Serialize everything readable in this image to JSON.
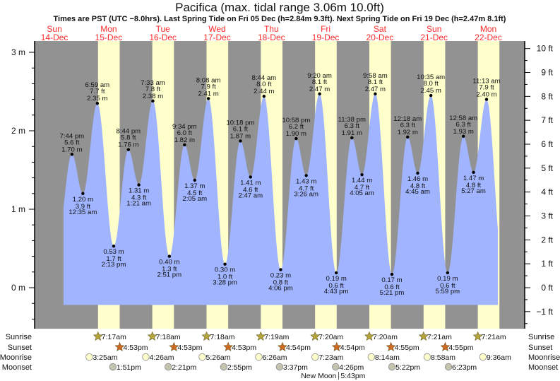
{
  "title": "Pacifica (max. tidal range 3.06m 10.0ft)",
  "subtitle": "Times are PST (UTC −8.0hrs). Last Spring Tide on Fri 05 Dec (h=2.84m 9.3ft). Next Spring Tide on Fri 19 Dec (h=2.47m 8.1ft)",
  "colors": {
    "night": "#929292",
    "daylight": "#ffffcc",
    "water": "#a0b4ff",
    "day_label": "#ff2a2a",
    "sunrise_star": "#b3a53a",
    "sunset_star": "#d06a22",
    "moonrise": "#ffffcc",
    "moonset": "#c4c4ae"
  },
  "chart_data": {
    "type": "area",
    "title": "Pacifica (max. tidal range 3.06m 10.0ft)",
    "days": [
      {
        "dow": "Sun",
        "date": "14-Dec"
      },
      {
        "dow": "Mon",
        "date": "15-Dec"
      },
      {
        "dow": "Tue",
        "date": "16-Dec"
      },
      {
        "dow": "Wed",
        "date": "17-Dec"
      },
      {
        "dow": "Thu",
        "date": "18-Dec"
      },
      {
        "dow": "Fri",
        "date": "19-Dec"
      },
      {
        "dow": "Sat",
        "date": "20-Dec"
      },
      {
        "dow": "Sun",
        "date": "21-Dec"
      },
      {
        "dow": "Mon",
        "date": "22-Dec"
      }
    ],
    "y_left": {
      "unit": "m",
      "ylim": [
        -0.48,
        3.15
      ],
      "ticks": [
        {
          "v": 3,
          "label": "3 m"
        },
        {
          "v": 2,
          "label": "2 m"
        },
        {
          "v": 1,
          "label": "1 m"
        },
        {
          "v": 0,
          "label": "0 m"
        }
      ]
    },
    "y_right": {
      "unit": "ft",
      "ticks": [
        {
          "v": 10,
          "label": "10 ft"
        },
        {
          "v": 9,
          "label": "9 ft"
        },
        {
          "v": 8,
          "label": "8 ft"
        },
        {
          "v": 7,
          "label": "7 ft"
        },
        {
          "v": 6,
          "label": "6 ft"
        },
        {
          "v": 5,
          "label": "5 ft"
        },
        {
          "v": 4,
          "label": "4 ft"
        },
        {
          "v": 3,
          "label": "3 ft"
        },
        {
          "v": 2,
          "label": "2 ft"
        },
        {
          "v": 1,
          "label": "1 ft"
        },
        {
          "v": 0,
          "label": "0 ft"
        },
        {
          "v": -1,
          "label": "−1 ft"
        }
      ]
    },
    "extremes": [
      {
        "date": "14-Dec",
        "type": "high",
        "time": "7:44 pm",
        "m": "1.70 m",
        "ft": "5.6 ft",
        "h": 1.7
      },
      {
        "date": "15-Dec",
        "type": "low",
        "time": "12:35 am",
        "m": "1.20 m",
        "ft": "3.9 ft",
        "h": 1.2
      },
      {
        "date": "15-Dec",
        "type": "high",
        "time": "6:59 am",
        "m": "2.35 m",
        "ft": "7.7 ft",
        "h": 2.35
      },
      {
        "date": "15-Dec",
        "type": "low",
        "time": "2:13 pm",
        "m": "0.53 m",
        "ft": "1.7 ft",
        "h": 0.53
      },
      {
        "date": "15-Dec",
        "type": "high",
        "time": "8:44 pm",
        "m": "1.76 m",
        "ft": "5.8 ft",
        "h": 1.76
      },
      {
        "date": "16-Dec",
        "type": "low",
        "time": "1:21 am",
        "m": "1.31 m",
        "ft": "4.3 ft",
        "h": 1.31
      },
      {
        "date": "16-Dec",
        "type": "high",
        "time": "7:33 am",
        "m": "2.38 m",
        "ft": "7.8 ft",
        "h": 2.38
      },
      {
        "date": "16-Dec",
        "type": "low",
        "time": "2:51 pm",
        "m": "0.40 m",
        "ft": "1.3 ft",
        "h": 0.4
      },
      {
        "date": "16-Dec",
        "type": "high",
        "time": "9:34 pm",
        "m": "1.82 m",
        "ft": "6.0 ft",
        "h": 1.82
      },
      {
        "date": "17-Dec",
        "type": "low",
        "time": "2:05 am",
        "m": "1.37 m",
        "ft": "4.5 ft",
        "h": 1.37
      },
      {
        "date": "17-Dec",
        "type": "high",
        "time": "8:08 am",
        "m": "2.41 m",
        "ft": "7.9 ft",
        "h": 2.41
      },
      {
        "date": "17-Dec",
        "type": "low",
        "time": "3:28 pm",
        "m": "0.30 m",
        "ft": "1.0 ft",
        "h": 0.3
      },
      {
        "date": "17-Dec",
        "type": "high",
        "time": "10:18 pm",
        "m": "1.87 m",
        "ft": "6.1 ft",
        "h": 1.87
      },
      {
        "date": "18-Dec",
        "type": "low",
        "time": "2:47 am",
        "m": "1.41 m",
        "ft": "4.6 ft",
        "h": 1.41
      },
      {
        "date": "18-Dec",
        "type": "high",
        "time": "8:44 am",
        "m": "2.44 m",
        "ft": "8.0 ft",
        "h": 2.44
      },
      {
        "date": "18-Dec",
        "type": "low",
        "time": "4:06 pm",
        "m": "0.23 m",
        "ft": "0.8 ft",
        "h": 0.23
      },
      {
        "date": "18-Dec",
        "type": "high",
        "time": "10:58 pm",
        "m": "1.90 m",
        "ft": "6.2 ft",
        "h": 1.9
      },
      {
        "date": "19-Dec",
        "type": "low",
        "time": "3:26 am",
        "m": "1.43 m",
        "ft": "4.7 ft",
        "h": 1.43
      },
      {
        "date": "19-Dec",
        "type": "high",
        "time": "9:20 am",
        "m": "2.47 m",
        "ft": "8.1 ft",
        "h": 2.47
      },
      {
        "date": "19-Dec",
        "type": "low",
        "time": "4:43 pm",
        "m": "0.19 m",
        "ft": "0.6 ft",
        "h": 0.19
      },
      {
        "date": "19-Dec",
        "type": "high",
        "time": "11:38 pm",
        "m": "1.91 m",
        "ft": "6.3 ft",
        "h": 1.91
      },
      {
        "date": "20-Dec",
        "type": "low",
        "time": "4:05 am",
        "m": "1.44 m",
        "ft": "4.7 ft",
        "h": 1.44
      },
      {
        "date": "20-Dec",
        "type": "high",
        "time": "9:58 am",
        "m": "2.47 m",
        "ft": "8.1 ft",
        "h": 2.47
      },
      {
        "date": "20-Dec",
        "type": "low",
        "time": "5:21 pm",
        "m": "0.17 m",
        "ft": "0.6 ft",
        "h": 0.17
      },
      {
        "date": "21-Dec",
        "type": "high",
        "time": "12:18 am",
        "m": "1.92 m",
        "ft": "6.3 ft",
        "h": 1.92
      },
      {
        "date": "21-Dec",
        "type": "low",
        "time": "4:45 am",
        "m": "1.46 m",
        "ft": "4.8 ft",
        "h": 1.46
      },
      {
        "date": "21-Dec",
        "type": "high",
        "time": "10:35 am",
        "m": "2.45 m",
        "ft": "8.0 ft",
        "h": 2.45
      },
      {
        "date": "21-Dec",
        "type": "low",
        "time": "5:59 pm",
        "m": "0.19 m",
        "ft": "0.6 ft",
        "h": 0.19
      },
      {
        "date": "22-Dec",
        "type": "high",
        "time": "12:58 am",
        "m": "1.93 m",
        "ft": "6.3 ft",
        "h": 1.93
      },
      {
        "date": "22-Dec",
        "type": "low",
        "time": "5:27 am",
        "m": "1.47 m",
        "ft": "4.8 ft",
        "h": 1.47
      },
      {
        "date": "22-Dec",
        "type": "high",
        "time": "11:13 am",
        "m": "2.40 m",
        "ft": "7.9 ft",
        "h": 2.4
      }
    ]
  },
  "astro": {
    "labels": {
      "sunrise": "Sunrise",
      "sunset": "Sunset",
      "moonrise": "Moonrise",
      "moonset": "Moonset"
    },
    "sunrise": [
      {
        "date": "15-Dec",
        "time": "7:17am"
      },
      {
        "date": "16-Dec",
        "time": "7:18am"
      },
      {
        "date": "17-Dec",
        "time": "7:18am"
      },
      {
        "date": "18-Dec",
        "time": "7:19am"
      },
      {
        "date": "19-Dec",
        "time": "7:20am"
      },
      {
        "date": "20-Dec",
        "time": "7:20am"
      },
      {
        "date": "21-Dec",
        "time": "7:21am"
      },
      {
        "date": "22-Dec",
        "time": "7:21am"
      }
    ],
    "sunset": [
      {
        "date": "15-Dec",
        "time": "4:53pm"
      },
      {
        "date": "16-Dec",
        "time": "4:53pm"
      },
      {
        "date": "17-Dec",
        "time": "4:53pm"
      },
      {
        "date": "18-Dec",
        "time": "4:54pm"
      },
      {
        "date": "19-Dec",
        "time": "4:54pm"
      },
      {
        "date": "20-Dec",
        "time": "4:55pm"
      },
      {
        "date": "21-Dec",
        "time": "4:55pm"
      }
    ],
    "moonrise": [
      {
        "date": "15-Dec",
        "time": "3:25am"
      },
      {
        "date": "16-Dec",
        "time": "4:26am"
      },
      {
        "date": "17-Dec",
        "time": "5:26am"
      },
      {
        "date": "18-Dec",
        "time": "6:26am"
      },
      {
        "date": "19-Dec",
        "time": "7:23am"
      },
      {
        "date": "20-Dec",
        "time": "8:14am"
      },
      {
        "date": "21-Dec",
        "time": "8:58am"
      },
      {
        "date": "22-Dec",
        "time": "9:36am"
      }
    ],
    "moonset": [
      {
        "date": "15-Dec",
        "time": "1:51pm"
      },
      {
        "date": "16-Dec",
        "time": "2:21pm"
      },
      {
        "date": "17-Dec",
        "time": "2:55pm"
      },
      {
        "date": "18-Dec",
        "time": "3:37pm"
      },
      {
        "date": "19-Dec",
        "time": "4:26pm"
      },
      {
        "date": "20-Dec",
        "time": "5:22pm"
      },
      {
        "date": "21-Dec",
        "time": "6:23pm"
      }
    ],
    "new_moon": {
      "date": "19-Dec",
      "label": "New Moon",
      "time": "5:43pm"
    }
  }
}
